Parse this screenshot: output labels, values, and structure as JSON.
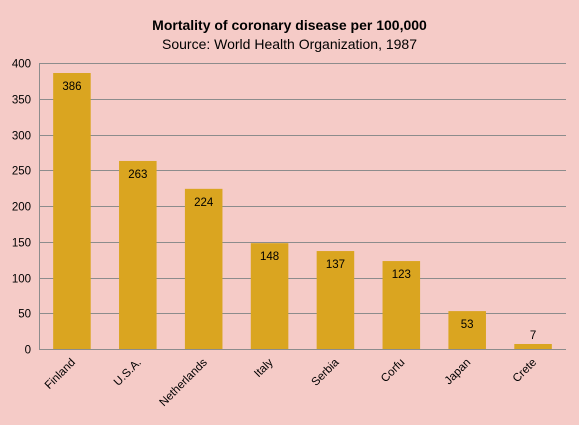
{
  "chart_data": {
    "type": "bar",
    "title": "Mortality of coronary disease per 100,000",
    "subtitle": "Source: World Health Organization, 1987",
    "categories": [
      "Finland",
      "U.S.A.",
      "Netherlands",
      "Italy",
      "Serbia",
      "Corfu",
      "Japan",
      "Crete"
    ],
    "values": [
      386,
      263,
      224,
      148,
      137,
      123,
      53,
      7
    ],
    "data_labels": [
      "386",
      "263",
      "224",
      "148",
      "137",
      "123",
      "53",
      "7"
    ],
    "ylim": [
      0,
      400
    ],
    "yticks": [
      0,
      50,
      100,
      150,
      200,
      250,
      300,
      350,
      400
    ],
    "grid": true,
    "legend": "none",
    "xlabel": "",
    "ylabel": ""
  },
  "colors": {
    "background": "#f5cbc7",
    "bar": "#daa520",
    "grid": "#8c8c8c"
  }
}
